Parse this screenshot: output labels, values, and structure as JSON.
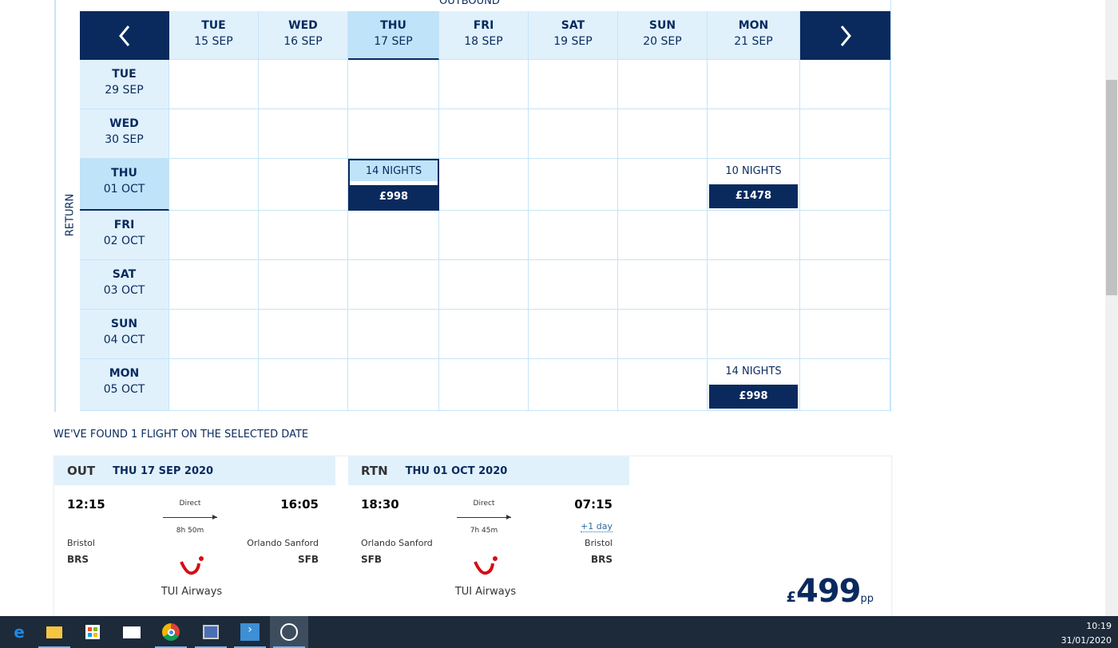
{
  "calendar": {
    "outbound_label": "OUTBOUND",
    "return_label": "RETURN",
    "prev_icon": "chevron-left-icon",
    "next_icon": "chevron-right-icon",
    "outbound_dates": [
      {
        "day": "TUE",
        "date": "15 SEP"
      },
      {
        "day": "WED",
        "date": "16 SEP"
      },
      {
        "day": "THU",
        "date": "17 SEP",
        "selected": true
      },
      {
        "day": "FRI",
        "date": "18 SEP"
      },
      {
        "day": "SAT",
        "date": "19 SEP"
      },
      {
        "day": "SUN",
        "date": "20 SEP"
      },
      {
        "day": "MON",
        "date": "21 SEP"
      }
    ],
    "return_dates": [
      {
        "day": "TUE",
        "date": "29 SEP"
      },
      {
        "day": "WED",
        "date": "30 SEP"
      },
      {
        "day": "THU",
        "date": "01 OCT",
        "selected": true
      },
      {
        "day": "FRI",
        "date": "02 OCT"
      },
      {
        "day": "SAT",
        "date": "03 OCT"
      },
      {
        "day": "SUN",
        "date": "04 OCT"
      },
      {
        "day": "MON",
        "date": "05 OCT"
      }
    ],
    "offers": [
      {
        "return_index": 2,
        "outbound_index": 2,
        "nights": "14 NIGHTS",
        "price": "£998",
        "selected": true
      },
      {
        "return_index": 2,
        "outbound_index": 6,
        "nights": "10 NIGHTS",
        "price": "£1478"
      },
      {
        "return_index": 6,
        "outbound_index": 6,
        "nights": "14 NIGHTS",
        "price": "£998"
      }
    ]
  },
  "results": {
    "heading": "WE'VE FOUND 1 FLIGHT ON THE SELECTED DATE",
    "out": {
      "label": "OUT",
      "date": "THU 17 SEP 2020",
      "dep_time": "12:15",
      "arr_time": "16:05",
      "stops": "Direct",
      "duration": "8h 50m",
      "from_city": "Bristol",
      "from_code": "BRS",
      "to_city": "Orlando Sanford",
      "to_code": "SFB",
      "airline": "TUI Airways"
    },
    "rtn": {
      "label": "RTN",
      "date": "THU 01 OCT 2020",
      "dep_time": "18:30",
      "arr_time": "07:15",
      "day_offset": "+1 day",
      "stops": "Direct",
      "duration": "7h 45m",
      "from_city": "Orlando Sanford",
      "from_code": "SFB",
      "to_city": "Bristol",
      "to_code": "BRS",
      "airline": "TUI Airways"
    },
    "price": {
      "currency": "£",
      "amount": "499",
      "suffix": "pp"
    },
    "brand_color": "#d40e14"
  },
  "taskbar": {
    "icons": [
      "edge-icon",
      "file-explorer-icon",
      "store-icon",
      "mail-icon",
      "chrome-icon",
      "network-app-icon",
      "remote-app-icon",
      "snipping-app-icon"
    ],
    "time": "10:19",
    "date": "31/01/2020"
  }
}
